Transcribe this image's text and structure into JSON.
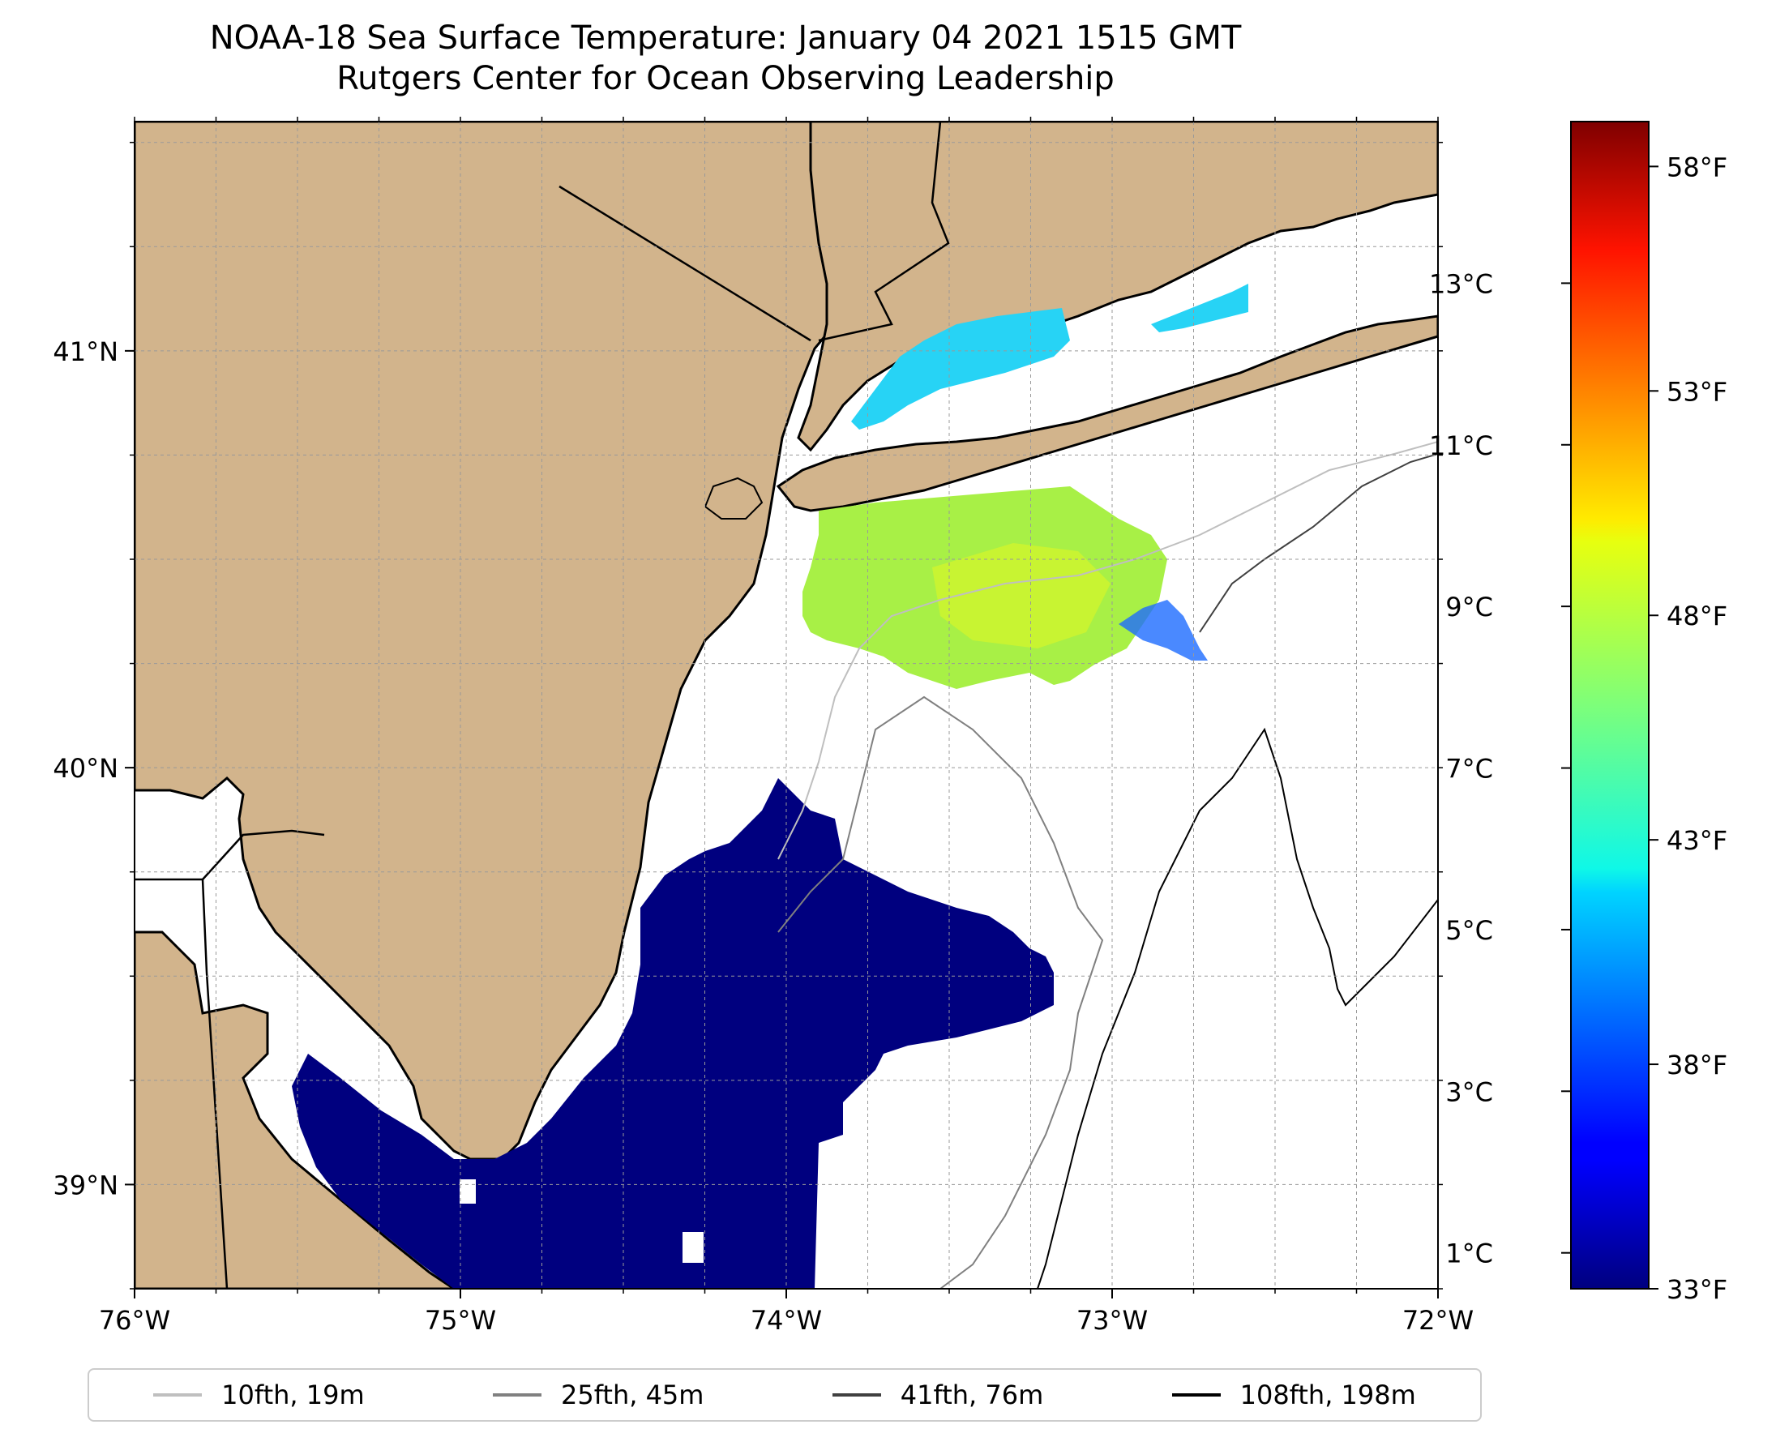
{
  "title": {
    "line1": "NOAA-18 Sea Surface Temperature: January 04 2021 1515 GMT",
    "line2": "Rutgers Center for Ocean Observing Leadership"
  },
  "map": {
    "extent": {
      "lon_min": -76.0,
      "lon_max": -72.0,
      "lat_min": 38.75,
      "lat_max": 41.55
    },
    "land_color": "#d2b48c",
    "ocean_color": "#ffffff",
    "grid": true,
    "lon_ticks": [
      {
        "value": -76,
        "label": "76°W"
      },
      {
        "value": -75,
        "label": "75°W"
      },
      {
        "value": -74,
        "label": "74°W"
      },
      {
        "value": -73,
        "label": "73°W"
      },
      {
        "value": -72,
        "label": "72°W"
      }
    ],
    "lat_ticks": [
      {
        "value": 41,
        "label": "41°N"
      },
      {
        "value": 40,
        "label": "40°N"
      },
      {
        "value": 39,
        "label": "39°N"
      }
    ],
    "sst_regions": [
      {
        "name": "Cold shelf water (<1°C)",
        "color": "#00007f"
      },
      {
        "name": "Offshore warm patch (~8-9°C)",
        "color": "#a8f046"
      },
      {
        "name": "Long Island Sound (~5-6°C)",
        "color": "#27d3f5"
      }
    ]
  },
  "colorbar": {
    "cmap": "jet",
    "celsius_ticks": [
      {
        "value": 1,
        "label": "1°C"
      },
      {
        "value": 3,
        "label": "3°C"
      },
      {
        "value": 5,
        "label": "5°C"
      },
      {
        "value": 7,
        "label": "7°C"
      },
      {
        "value": 9,
        "label": "9°C"
      },
      {
        "value": 11,
        "label": "11°C"
      },
      {
        "value": 13,
        "label": "13°C"
      }
    ],
    "fahrenheit_ticks": [
      {
        "value": 33,
        "label": "33°F"
      },
      {
        "value": 38,
        "label": "38°F"
      },
      {
        "value": 43,
        "label": "43°F"
      },
      {
        "value": 48,
        "label": "48°F"
      },
      {
        "value": 53,
        "label": "53°F"
      },
      {
        "value": 58,
        "label": "58°F"
      }
    ],
    "range_f": [
      33,
      59
    ]
  },
  "legend": [
    {
      "label": "10fth, 19m",
      "color": "#bfbfbf"
    },
    {
      "label": "25fth, 45m",
      "color": "#808080"
    },
    {
      "label": "41fth, 76m",
      "color": "#404040"
    },
    {
      "label": "108fth, 198m",
      "color": "#000000"
    }
  ]
}
